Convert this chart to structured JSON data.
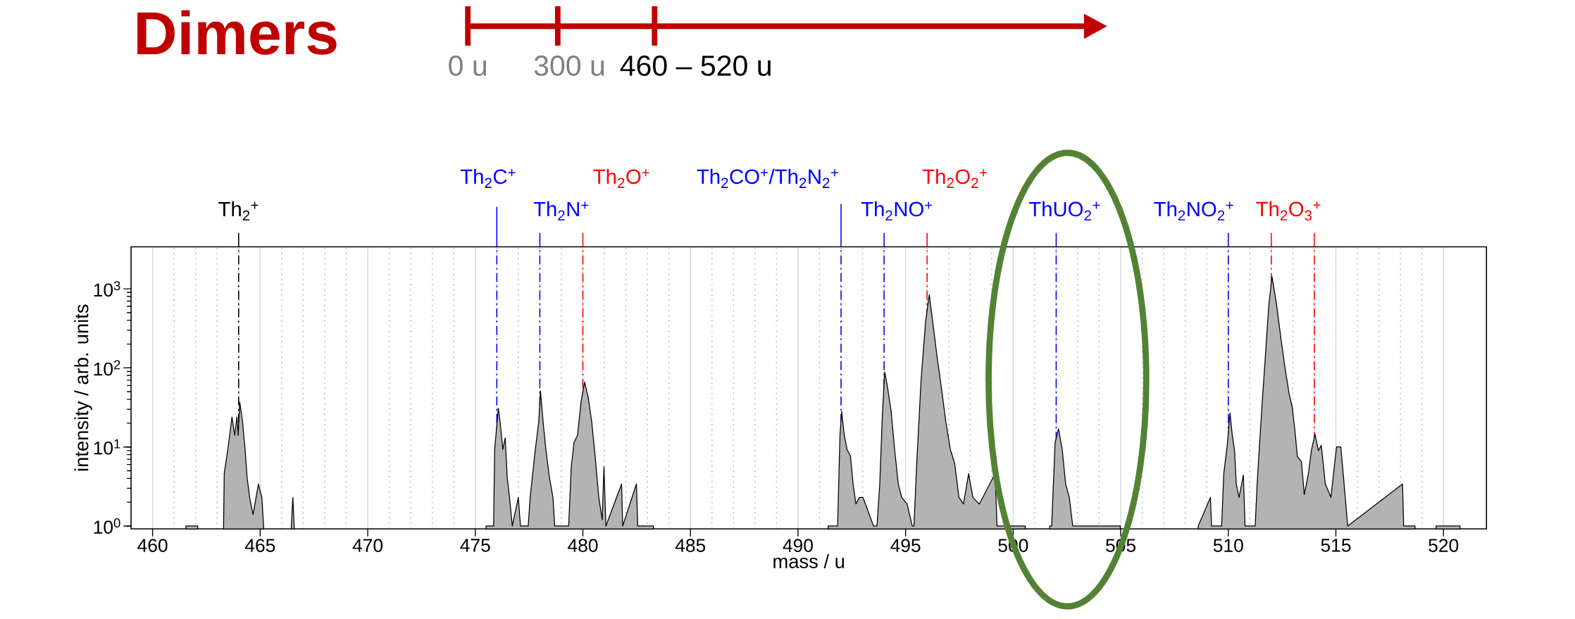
{
  "chart_data": {
    "type": "area",
    "title": "Dimers",
    "xlabel": "mass / u",
    "ylabel": "intensity / arb. units",
    "xlim": [
      459,
      522
    ],
    "ylim": [
      0.92,
      3400
    ],
    "log": "y",
    "grid": "x",
    "xticks": [
      460,
      465,
      470,
      475,
      480,
      485,
      490,
      495,
      500,
      505,
      510,
      515,
      520
    ],
    "yticks": [
      {
        "value": 1,
        "label": "10$^{0}$"
      },
      {
        "value": 10,
        "label": "10$^{1}$"
      },
      {
        "value": 100,
        "label": "10$^{2}$"
      },
      {
        "value": 1000,
        "label": "10$^{3}$"
      }
    ],
    "series": [
      {
        "color": "#b3b3b3",
        "x": [
          461.55,
          462.1,
          462.7,
          463.3,
          463.33,
          463.52,
          463.69,
          463.82,
          463.92,
          463.98,
          464.05,
          464.18,
          464.3,
          464.39,
          464.51,
          464.67,
          464.92,
          465.08,
          465.16,
          465.8,
          466.45,
          466.52,
          466.58,
          470,
          475.5,
          475.85,
          475.9,
          476.07,
          476.15,
          476.28,
          476.39,
          476.48,
          476.59,
          476.72,
          477.0,
          477.1,
          477.46,
          477.55,
          477.79,
          477.95,
          478.03,
          478.15,
          478.28,
          478.44,
          478.61,
          478.69,
          479.34,
          479.46,
          479.59,
          479.75,
          479.92,
          480.08,
          480.25,
          480.41,
          480.57,
          480.74,
          480.9,
          480.98,
          481.07,
          481.8,
          481.85,
          482.49,
          482.55,
          483.28,
          487,
          491.4,
          491.84,
          491.95,
          492.03,
          492.15,
          492.28,
          492.44,
          492.56,
          492.69,
          492.85,
          493.02,
          493.51,
          493.67,
          493.8,
          493.92,
          494.03,
          494.16,
          494.33,
          494.49,
          494.66,
          494.82,
          495.07,
          495.31,
          495.39,
          495.51,
          495.72,
          495.93,
          496.1,
          496.26,
          496.46,
          496.66,
          496.87,
          497.08,
          497.28,
          497.48,
          497.69,
          497.93,
          498.13,
          498.43,
          499.16,
          499.25,
          500.56,
          501.2,
          501.7,
          501.79,
          501.95,
          502.11,
          502.28,
          502.44,
          502.61,
          502.77,
          504.98,
          506.5,
          508.6,
          509.17,
          509.22,
          509.69,
          509.79,
          509.95,
          510.08,
          510.18,
          510.29,
          510.37,
          510.5,
          510.7,
          510.78,
          511.25,
          511.34,
          511.45,
          511.58,
          511.71,
          511.88,
          512.03,
          512.23,
          512.43,
          512.62,
          512.82,
          512.97,
          513.1,
          513.21,
          513.4,
          513.53,
          513.73,
          513.86,
          514.03,
          514.19,
          514.32,
          514.51,
          514.77,
          515.03,
          515.23,
          515.36,
          515.55,
          518.1,
          518.15,
          518.68,
          519.2,
          519.66,
          520.77
        ],
        "values": [
          1,
          1,
          null,
          1,
          4.6,
          10.3,
          24,
          14,
          24,
          14,
          37,
          21,
          9.3,
          4.2,
          2.3,
          1.4,
          3.4,
          2.3,
          1,
          null,
          1,
          2.3,
          1,
          null,
          1,
          1,
          9.3,
          31,
          21,
          9.3,
          13,
          4.2,
          2.3,
          1,
          2.3,
          1,
          1,
          2.3,
          9.3,
          21,
          51,
          21,
          9.3,
          4.2,
          2.3,
          1,
          1,
          5.6,
          11.4,
          14,
          38,
          66,
          42,
          21,
          7.6,
          2.3,
          1.2,
          5.6,
          1,
          3.4,
          1,
          3.4,
          1,
          1,
          null,
          1,
          1,
          14,
          28,
          14,
          9.3,
          7.6,
          3.4,
          1.9,
          2.3,
          2.3,
          1,
          1,
          3.4,
          25,
          89,
          57,
          28,
          9.3,
          3.4,
          2.3,
          1.9,
          1,
          1,
          5.6,
          70,
          385,
          840,
          385,
          140,
          57,
          21,
          9.3,
          6.2,
          2.3,
          1.9,
          4.6,
          2.3,
          1.9,
          4.6,
          1,
          1,
          null,
          1,
          1,
          11.4,
          17,
          9.3,
          3.4,
          2.3,
          1,
          1,
          null,
          1,
          2.3,
          1,
          1,
          4.6,
          10.5,
          27,
          14.5,
          9,
          3.4,
          2.3,
          4.4,
          1,
          1,
          3.4,
          10.5,
          38,
          125,
          610,
          1430,
          670,
          255,
          107,
          48,
          32,
          15.7,
          7.6,
          6.5,
          2.5,
          4.7,
          9,
          14.5,
          9,
          10.5,
          3.4,
          2.3,
          10,
          10,
          4,
          1,
          3.4,
          1,
          1,
          null,
          1,
          1
        ]
      }
    ],
    "ref_lines": [
      {
        "axis": "x",
        "value": 464,
        "label": "Th$_{2}$$^{+}$",
        "color": "#000000",
        "line_style": "dashdot"
      },
      {
        "axis": "x",
        "value": 476,
        "label": "Th$_{2}$C$^{+}$",
        "color": "#0000ff",
        "line_style": "dashdot"
      },
      {
        "axis": "x",
        "value": 478,
        "label": "Th$_{2}$N$^{+}$",
        "color": "#0000ff",
        "line_style": "dashdot"
      },
      {
        "axis": "x",
        "value": 480,
        "label": "Th$_{2}$O$^{+}$",
        "color": "#ff0000",
        "line_style": "dashdot"
      },
      {
        "axis": "x",
        "value": 492,
        "label": "Th$_{2}$CO$^{+}$/Th$_{2}$N$_{2}$$^{+}$",
        "color": "#0000ff",
        "line_style": "dashdot"
      },
      {
        "axis": "x",
        "value": 494,
        "label": "Th$_{2}$NO$^{+}$",
        "color": "#0000ff",
        "line_style": "dashdot"
      },
      {
        "axis": "x",
        "value": 496,
        "label": "Th$_{2}$O$_{2}$$^{+}$",
        "color": "#ff0000",
        "line_style": "dashdot"
      },
      {
        "axis": "x",
        "value": 502,
        "label": "ThUO$_{2}$$^{+}$",
        "color": "#0000ff",
        "line_style": "dashdot"
      },
      {
        "axis": "x",
        "value": 510,
        "label": "Th$_{2}$NO$_{2}$$^{+}$",
        "color": "#0000ff",
        "line_style": "dashdot"
      },
      {
        "axis": "x",
        "value": 512,
        "label": "Th$_{2}$O$_{3}$$^{+}$",
        "color": "#ff0000",
        "line_style": "dashdot"
      },
      {
        "axis": "x",
        "value": 514,
        "color": "#ff0000",
        "line_style": "dashdot"
      }
    ],
    "annotations": [
      "0 u",
      "300 u",
      "460 – 520 u"
    ]
  }
}
